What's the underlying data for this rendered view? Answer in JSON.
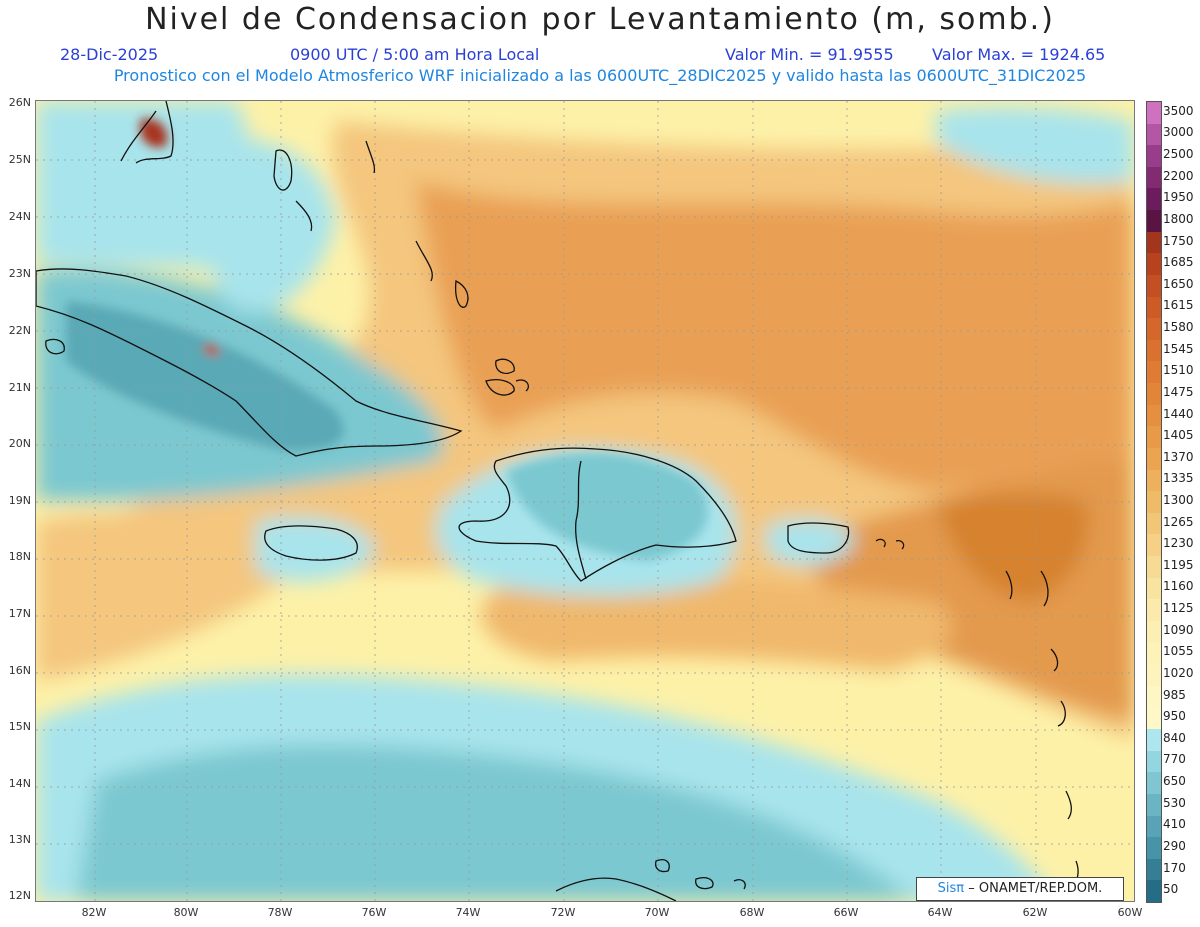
{
  "header": {
    "title": "Nivel de Condensacion por Levantamiento (m, somb.)",
    "date": "28-Dic-2025",
    "time": "0900 UTC / 5:00 am Hora Local",
    "vmin": "Valor Min. = 91.9555",
    "vmax": "Valor Max. = 1924.65",
    "model_line": "Pronostico con el Modelo Atmosferico WRF inicializado a las 0600UTC_28DIC2025 y valido hasta las  0600UTC_31DIC2025"
  },
  "map": {
    "lat_ticks": [
      "26N",
      "25N",
      "24N",
      "23N",
      "22N",
      "21N",
      "20N",
      "19N",
      "18N",
      "17N",
      "16N",
      "15N",
      "14N",
      "13N",
      "12N"
    ],
    "lon_ticks": [
      "82W",
      "80W",
      "78W",
      "76W",
      "74W",
      "72W",
      "70W",
      "68W",
      "66W",
      "64W",
      "62W",
      "60W"
    ],
    "palette": {
      "cyan": "#a8e4ec",
      "teal": "#7cc8d0",
      "dark_teal": "#5aa9b6",
      "pale_yellow": "#fdf1a8",
      "light_orange": "#f4c67e",
      "orange": "#e9a054",
      "dark_orange": "#d6822f",
      "red_brown": "#a8331a",
      "coast": "#111111"
    }
  },
  "colorbar": {
    "labels": [
      "3500",
      "3000",
      "2500",
      "2200",
      "1950",
      "1800",
      "1750",
      "1685",
      "1650",
      "1615",
      "1580",
      "1545",
      "1510",
      "1475",
      "1440",
      "1405",
      "1370",
      "1335",
      "1300",
      "1265",
      "1230",
      "1195",
      "1160",
      "1125",
      "1090",
      "1055",
      "1020",
      "985",
      "950",
      "840",
      "770",
      "650",
      "530",
      "410",
      "290",
      "170",
      "50"
    ],
    "colors": [
      "#d070c0",
      "#b455a6",
      "#9a3c8c",
      "#822a72",
      "#6c1c5c",
      "#5a1444",
      "#a3351c",
      "#b8421e",
      "#c34f22",
      "#cc5b25",
      "#d46729",
      "#da712e",
      "#df7b33",
      "#e38538",
      "#e68f3f",
      "#e99a47",
      "#eba551",
      "#eeb05c",
      "#f0bb69",
      "#f2c677",
      "#f5d085",
      "#f7da93",
      "#f9e3a1",
      "#fbeaab",
      "#fcefb3",
      "#fdf2b8",
      "#fdf4bd",
      "#fef6c3",
      "#fef8c9",
      "#aee6ee",
      "#93d6e0",
      "#7fc6d2",
      "#6ab5c4",
      "#58a4b6",
      "#4793a7",
      "#347f96",
      "#246d86"
    ]
  },
  "credit": {
    "logo": "Sisπ",
    "text": "– ONAMET/REP.DOM."
  }
}
